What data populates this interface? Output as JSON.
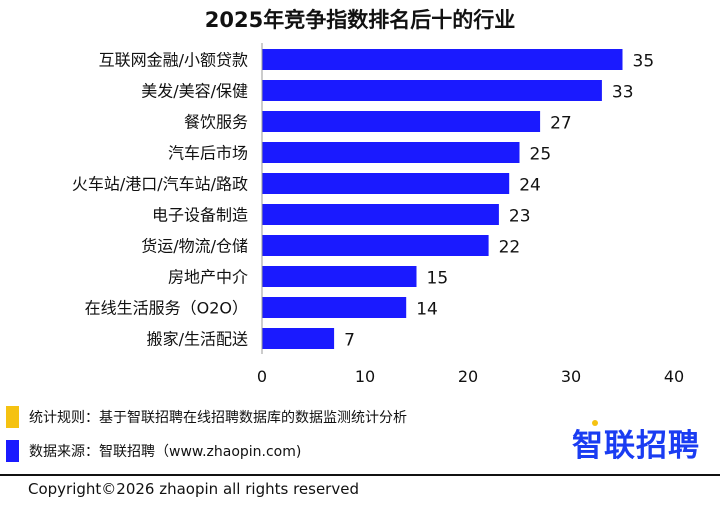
{
  "chart_data": {
    "type": "bar",
    "orientation": "horizontal",
    "title": "2025年竞争指数排名后十的行业",
    "categories": [
      "互联网金融/小额贷款",
      "美发/美容/保健",
      "餐饮服务",
      "汽车后市场",
      "火车站/港口/汽车站/路政",
      "电子设备制造",
      "货运/物流/仓储",
      "房地产中介",
      "在线生活服务（O2O）",
      "搬家/生活配送"
    ],
    "values": [
      35,
      33,
      27,
      25,
      24,
      23,
      22,
      15,
      14,
      7
    ],
    "xlim": [
      0,
      40
    ],
    "xticks": [
      "0",
      "10",
      "20",
      "30",
      "40"
    ],
    "grid": false,
    "data_labels": true,
    "bar_color": "#1a1aff"
  },
  "notes": {
    "rule_text": "统计规则：基于智联招聘在线招聘数据库的数据监测统计分析",
    "source_text": "数据来源：智联招聘（www.zhaopin.com)",
    "rule_color": "#f5c211",
    "source_color": "#1a1aff"
  },
  "logo": {
    "text": "智联招聘",
    "color": "#1a3cf2",
    "accent": "#f5c211"
  },
  "footer": {
    "copyright": "Copyright©2026 zhaopin all rights reserved"
  }
}
